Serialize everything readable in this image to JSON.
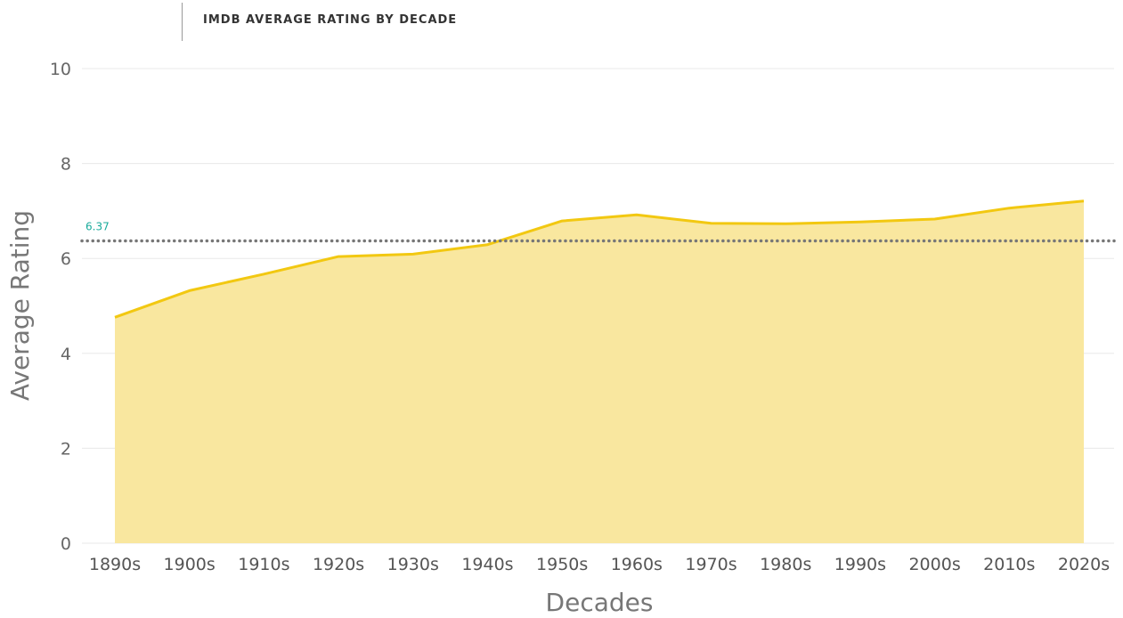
{
  "colors": {
    "area_fill": "#F9E79F",
    "line": "#F2C811",
    "reference_line": "#777777",
    "reference_label": "#1AAB9B",
    "grid": "#E8E8E8"
  },
  "chart_data": {
    "type": "area",
    "title": "IMDB AVERAGE RATING BY DECADE",
    "xlabel": "Decades",
    "ylabel": "Average Rating",
    "categories": [
      "1890s",
      "1900s",
      "1910s",
      "1920s",
      "1930s",
      "1940s",
      "1950s",
      "1960s",
      "1970s",
      "1980s",
      "1990s",
      "2000s",
      "2010s",
      "2020s"
    ],
    "series": [
      {
        "values": [
          4.76,
          5.32,
          5.67,
          6.04,
          6.09,
          6.29,
          6.79,
          6.92,
          6.74,
          6.73,
          6.77,
          6.83,
          7.06,
          7.21
        ]
      }
    ],
    "ylim": [
      0,
      10
    ],
    "yticks": [
      "0",
      "2",
      "4",
      "6",
      "8",
      "10"
    ],
    "reference_line": {
      "value": 6.37,
      "label": "6.37",
      "style": "dotted"
    },
    "grid": true,
    "legend": "none"
  }
}
